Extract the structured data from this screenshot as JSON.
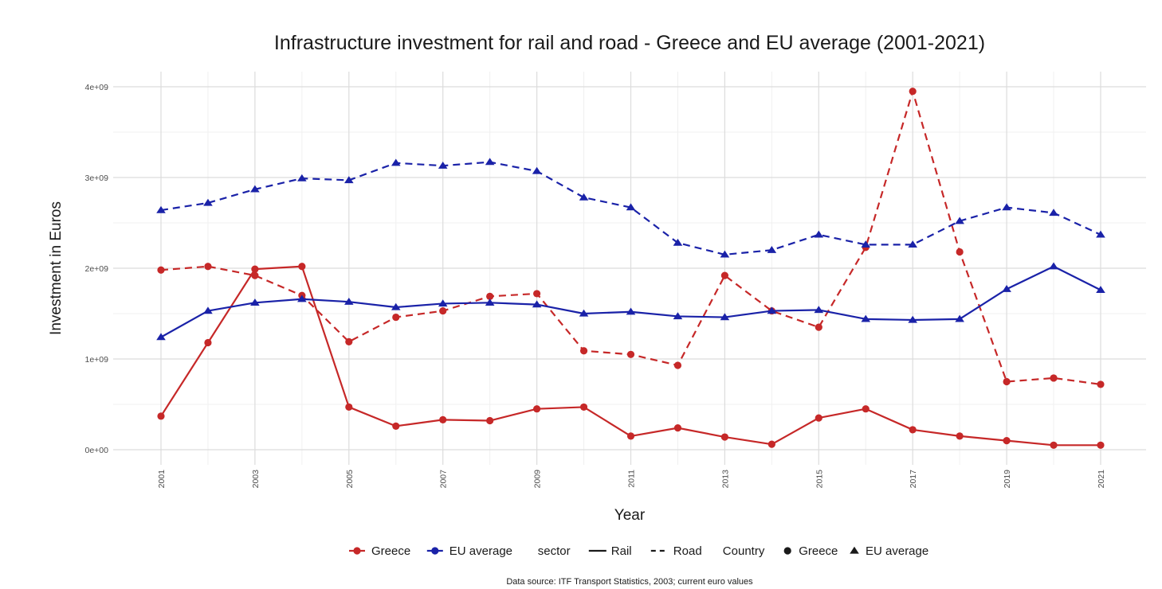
{
  "chart_data": {
    "type": "line",
    "title": "Infrastructure investment for rail and road - Greece and EU average (2001-2021)",
    "xlabel": "Year",
    "ylabel": "Investment in Euros",
    "x": [
      2001,
      2002,
      2003,
      2004,
      2005,
      2006,
      2007,
      2008,
      2009,
      2010,
      2011,
      2012,
      2013,
      2014,
      2015,
      2016,
      2017,
      2018,
      2019,
      2020,
      2021
    ],
    "x_ticks": [
      "2001",
      "2003",
      "2005",
      "2007",
      "2009",
      "2011",
      "2013",
      "2015",
      "2017",
      "2019",
      "2021"
    ],
    "ylim": [
      0,
      4000000000
    ],
    "y_ticks": [
      {
        "value": 0,
        "label": "0e+00"
      },
      {
        "value": 1000000000,
        "label": "1e+09"
      },
      {
        "value": 2000000000,
        "label": "2e+09"
      },
      {
        "value": 3000000000,
        "label": "3e+09"
      },
      {
        "value": 4000000000,
        "label": "4e+09"
      }
    ],
    "grid": true,
    "series": [
      {
        "country": "Greece",
        "sector": "Rail",
        "color": "#c62828",
        "marker": "circle",
        "dash": "solid",
        "values": [
          370000000,
          1180000000,
          1990000000,
          2020000000,
          470000000,
          260000000,
          330000000,
          320000000,
          450000000,
          470000000,
          150000000,
          240000000,
          140000000,
          60000000,
          350000000,
          450000000,
          220000000,
          150000000,
          100000000,
          50000000,
          50000000
        ]
      },
      {
        "country": "Greece",
        "sector": "Road",
        "color": "#c62828",
        "marker": "circle",
        "dash": "dashed",
        "values": [
          1980000000,
          2020000000,
          1920000000,
          1700000000,
          1190000000,
          1460000000,
          1530000000,
          1690000000,
          1720000000,
          1090000000,
          1050000000,
          930000000,
          1920000000,
          1530000000,
          1350000000,
          2230000000,
          3950000000,
          2180000000,
          750000000,
          790000000,
          720000000
        ]
      },
      {
        "country": "EU average",
        "sector": "Rail",
        "color": "#1a22a8",
        "marker": "triangle",
        "dash": "solid",
        "values": [
          1240000000,
          1530000000,
          1620000000,
          1660000000,
          1630000000,
          1570000000,
          1610000000,
          1620000000,
          1600000000,
          1500000000,
          1520000000,
          1470000000,
          1460000000,
          1530000000,
          1540000000,
          1440000000,
          1430000000,
          1440000000,
          1770000000,
          2020000000,
          1760000000
        ]
      },
      {
        "country": "EU average",
        "sector": "Road",
        "color": "#1a22a8",
        "marker": "triangle",
        "dash": "dashed",
        "values": [
          2640000000,
          2720000000,
          2870000000,
          2990000000,
          2970000000,
          3160000000,
          3130000000,
          3170000000,
          3070000000,
          2780000000,
          2670000000,
          2280000000,
          2150000000,
          2200000000,
          2370000000,
          2260000000,
          2260000000,
          2520000000,
          2670000000,
          2610000000,
          2370000000
        ]
      }
    ],
    "legend": {
      "placement": "bottom",
      "country_colors": [
        {
          "label": "Greece",
          "color": "#c62828"
        },
        {
          "label": "EU average",
          "color": "#1a22a8"
        }
      ],
      "sector_title": "sector",
      "sector_items": [
        {
          "label": "Rail",
          "dash": "solid"
        },
        {
          "label": "Road",
          "dash": "dashed"
        }
      ],
      "country_title": "Country",
      "shape_items": [
        {
          "label": "Greece",
          "marker": "circle"
        },
        {
          "label": "EU average",
          "marker": "triangle"
        }
      ]
    },
    "caption": "Data source: ITF Transport Statistics, 2003; current euro values"
  }
}
